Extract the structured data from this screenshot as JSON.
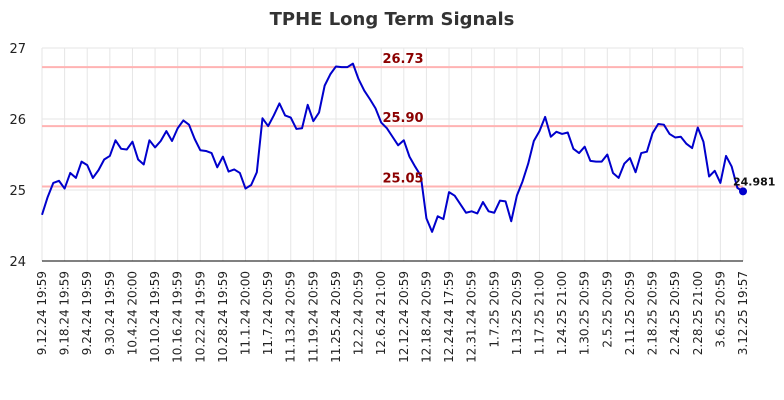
{
  "chart_data": {
    "type": "line",
    "title": "TPHE Long Term Signals",
    "xlabel": "",
    "ylabel": "",
    "ylim": [
      24,
      27
    ],
    "y_ticks": [
      "24",
      "25",
      "26",
      "27"
    ],
    "grid": true,
    "x_tick_labels": [
      "9.12.24 19:59",
      "9.18.24 19:59",
      "9.24.24 19:59",
      "9.30.24 19:59",
      "10.4.24 20:00",
      "10.10.24 19:59",
      "10.16.24 19:59",
      "10.22.24 19:59",
      "10.28.24 19:59",
      "11.1.24 20:00",
      "11.7.24 20:59",
      "11.13.24 20:59",
      "11.19.24 20:59",
      "11.25.24 20:59",
      "12.2.24 20:59",
      "12.6.24 21:00",
      "12.12.24 20:59",
      "12.18.24 20:59",
      "12.24.24 17:59",
      "12.31.24 20:59",
      "1.7.25 20:59",
      "1.13.25 20:59",
      "1.17.25 21:00",
      "1.24.25 21:00",
      "1.30.25 20:59",
      "2.5.25 20:59",
      "2.11.25 20:59",
      "2.18.25 20:59",
      "2.24.25 20:59",
      "2.28.25 21:00",
      "3.6.25 20:59",
      "3.12.25 19:57"
    ],
    "horizontal_lines": [
      {
        "value": 26.73,
        "label": "26.73",
        "color": "#ffb3b3",
        "label_color": "#8b0000"
      },
      {
        "value": 25.9,
        "label": "25.90",
        "color": "#ffb3b3",
        "label_color": "#8b0000"
      },
      {
        "value": 25.05,
        "label": "25.05",
        "color": "#ffb3b3",
        "label_color": "#8b0000"
      }
    ],
    "series": [
      {
        "color": "#0000cc",
        "values": [
          24.65,
          24.9,
          25.1,
          25.13,
          25.02,
          25.24,
          25.17,
          25.4,
          25.35,
          25.17,
          25.28,
          25.43,
          25.48,
          25.7,
          25.58,
          25.57,
          25.68,
          25.43,
          25.36,
          25.7,
          25.6,
          25.69,
          25.83,
          25.69,
          25.87,
          25.98,
          25.92,
          25.72,
          25.56,
          25.55,
          25.52,
          25.32,
          25.47,
          25.26,
          25.29,
          25.24,
          25.02,
          25.07,
          25.25,
          26.01,
          25.9,
          26.05,
          26.22,
          26.05,
          26.02,
          25.86,
          25.87,
          26.2,
          25.97,
          26.09,
          26.47,
          26.63,
          26.74,
          26.73,
          26.73,
          26.78,
          26.56,
          26.4,
          26.28,
          26.15,
          25.95,
          25.87,
          25.75,
          25.63,
          25.7,
          25.47,
          25.33,
          25.2,
          24.6,
          24.41,
          24.63,
          24.59,
          24.97,
          24.92,
          24.8,
          24.68,
          24.7,
          24.67,
          24.83,
          24.7,
          24.68,
          24.85,
          24.84,
          24.56,
          24.92,
          25.12,
          25.37,
          25.69,
          25.83,
          26.03,
          25.75,
          25.82,
          25.79,
          25.81,
          25.58,
          25.52,
          25.61,
          25.41,
          25.4,
          25.4,
          25.5,
          25.24,
          25.17,
          25.37,
          25.45,
          25.25,
          25.52,
          25.54,
          25.8,
          25.93,
          25.92,
          25.79,
          25.74,
          25.75,
          25.65,
          25.59,
          25.88,
          25.68,
          25.19,
          25.27,
          25.1,
          25.48,
          25.33,
          25.03,
          24.981
        ]
      }
    ],
    "last_value_label": "24.981"
  }
}
